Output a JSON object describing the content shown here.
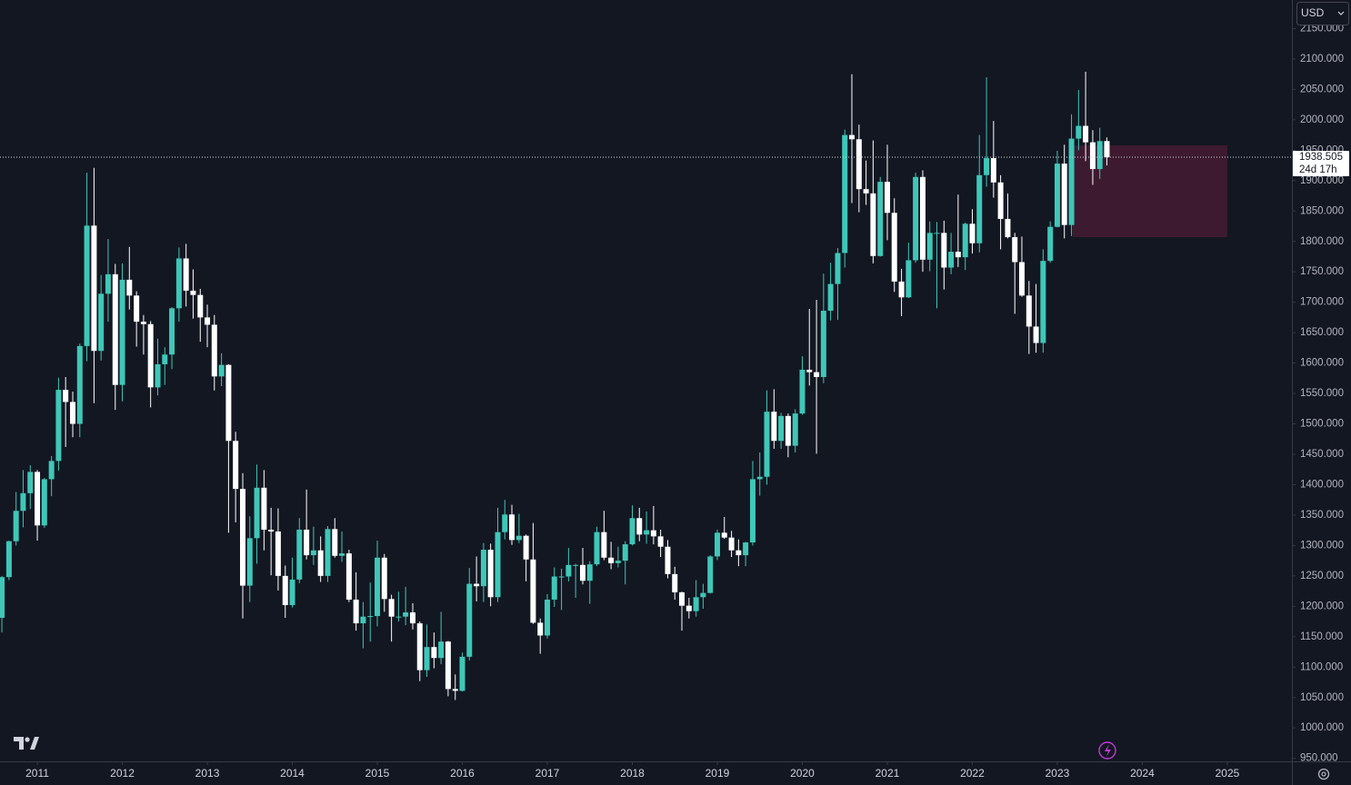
{
  "chart_data": {
    "type": "candlestick",
    "currency": "USD",
    "last_price": 1938.505,
    "countdown": "24d 17h",
    "up_color": "#3fc7b8",
    "down_color": "#ffffff",
    "grid": false,
    "xlim": [
      2010.561,
      2025.76
    ],
    "ylim": [
      945,
      2197
    ],
    "xticks": [
      2011,
      2012,
      2013,
      2014,
      2015,
      2016,
      2017,
      2018,
      2019,
      2020,
      2021,
      2022,
      2023,
      2024,
      2025
    ],
    "yticks": [
      {
        "value": 950,
        "label": "950.000"
      },
      {
        "value": 1000,
        "label": "1000.000"
      },
      {
        "value": 1050,
        "label": "1050.000"
      },
      {
        "value": 1100,
        "label": "1100.000"
      },
      {
        "value": 1150,
        "label": "1150.000"
      },
      {
        "value": 1200,
        "label": "1200.000"
      },
      {
        "value": 1250,
        "label": "1250.000"
      },
      {
        "value": 1300,
        "label": "1300.000"
      },
      {
        "value": 1350,
        "label": "1350.000"
      },
      {
        "value": 1400,
        "label": "1400.000"
      },
      {
        "value": 1450,
        "label": "1450.000"
      },
      {
        "value": 1500,
        "label": "1500.000"
      },
      {
        "value": 1550,
        "label": "1550.000"
      },
      {
        "value": 1600,
        "label": "1600.000"
      },
      {
        "value": 1650,
        "label": "1650.000"
      },
      {
        "value": 1700,
        "label": "1700.000"
      },
      {
        "value": 1750,
        "label": "1750.000"
      },
      {
        "value": 1800,
        "label": "1800.000"
      },
      {
        "value": 1850,
        "label": "1850.000"
      },
      {
        "value": 1900,
        "label": "1900.000"
      },
      {
        "value": 1950,
        "label": "1950.000"
      },
      {
        "value": 2000,
        "label": "2000.000"
      },
      {
        "value": 2050,
        "label": "2050.000"
      },
      {
        "value": 2100,
        "label": "2100.000"
      },
      {
        "value": 2150,
        "label": "2150.000"
      }
    ],
    "zone": {
      "x": [
        2023.18,
        2025.0
      ],
      "y": [
        1807,
        1958
      ],
      "color": "#3d1a30"
    },
    "x": [
      2010.583,
      2010.667,
      2010.75,
      2010.833,
      2010.917,
      2011,
      2011.083,
      2011.167,
      2011.25,
      2011.333,
      2011.417,
      2011.5,
      2011.583,
      2011.667,
      2011.75,
      2011.833,
      2011.917,
      2012,
      2012.083,
      2012.167,
      2012.25,
      2012.333,
      2012.417,
      2012.5,
      2012.583,
      2012.667,
      2012.75,
      2012.833,
      2012.917,
      2013,
      2013.083,
      2013.167,
      2013.25,
      2013.333,
      2013.417,
      2013.5,
      2013.583,
      2013.667,
      2013.75,
      2013.833,
      2013.917,
      2014,
      2014.083,
      2014.167,
      2014.25,
      2014.333,
      2014.417,
      2014.5,
      2014.583,
      2014.667,
      2014.75,
      2014.833,
      2014.917,
      2015,
      2015.083,
      2015.167,
      2015.25,
      2015.333,
      2015.417,
      2015.5,
      2015.583,
      2015.667,
      2015.75,
      2015.833,
      2015.917,
      2016,
      2016.083,
      2016.167,
      2016.25,
      2016.333,
      2016.417,
      2016.5,
      2016.583,
      2016.667,
      2016.75,
      2016.833,
      2016.917,
      2017,
      2017.083,
      2017.167,
      2017.25,
      2017.333,
      2017.417,
      2017.5,
      2017.583,
      2017.667,
      2017.75,
      2017.833,
      2017.917,
      2018,
      2018.083,
      2018.167,
      2018.25,
      2018.333,
      2018.417,
      2018.5,
      2018.583,
      2018.667,
      2018.75,
      2018.833,
      2018.917,
      2019,
      2019.083,
      2019.167,
      2019.25,
      2019.333,
      2019.417,
      2019.5,
      2019.583,
      2019.667,
      2019.75,
      2019.833,
      2019.917,
      2020,
      2020.083,
      2020.167,
      2020.25,
      2020.333,
      2020.417,
      2020.5,
      2020.583,
      2020.667,
      2020.75,
      2020.833,
      2020.917,
      2021,
      2021.083,
      2021.167,
      2021.25,
      2021.333,
      2021.417,
      2021.5,
      2021.583,
      2021.667,
      2021.75,
      2021.833,
      2021.917,
      2022,
      2022.083,
      2022.167,
      2022.25,
      2022.333,
      2022.417,
      2022.5,
      2022.583,
      2022.667,
      2022.75,
      2022.833,
      2022.917,
      2023,
      2023.083,
      2023.167,
      2023.25,
      2023.333,
      2023.417,
      2023.5,
      2023.583
    ],
    "open": [
      1181,
      1248,
      1307,
      1357,
      1386,
      1421,
      1333,
      1409,
      1439,
      1556,
      1536,
      1500,
      1628,
      1826,
      1620,
      1714,
      1746,
      1564,
      1737,
      1711,
      1668,
      1664,
      1560,
      1598,
      1614,
      1690,
      1772,
      1719,
      1712,
      1675,
      1663,
      1578,
      1597,
      1472,
      1393,
      1234,
      1312,
      1395,
      1326,
      1323,
      1250,
      1202,
      1244,
      1326,
      1284,
      1292,
      1250,
      1327,
      1283,
      1287,
      1211,
      1172,
      1183,
      1184,
      1280,
      1212,
      1183,
      1183,
      1190,
      1172,
      1095,
      1133,
      1115,
      1142,
      1064,
      1061,
      1117,
      1237,
      1233,
      1293,
      1215,
      1322,
      1351,
      1309,
      1316,
      1277,
      1173,
      1152,
      1211,
      1249,
      1249,
      1268,
      1268,
      1242,
      1269,
      1322,
      1280,
      1271,
      1275,
      1302,
      1345,
      1318,
      1325,
      1315,
      1298,
      1253,
      1223,
      1201,
      1192,
      1215,
      1222,
      1282,
      1321,
      1313,
      1292,
      1284,
      1305,
      1409,
      1413,
      1520,
      1472,
      1513,
      1464,
      1517,
      1589,
      1585,
      1577,
      1686,
      1730,
      1781,
      1975,
      1968,
      1886,
      1879,
      1776,
      1898,
      1847,
      1734,
      1708,
      1769,
      1906,
      1770,
      1814,
      1814,
      1757,
      1783,
      1774,
      1829,
      1797,
      1909,
      1937,
      1897,
      1837,
      1807,
      1766,
      1711,
      1660,
      1633,
      1768,
      1824,
      1928,
      1827,
      1969,
      1990,
      1963,
      1919,
      1965
    ],
    "high": [
      1250,
      1308,
      1388,
      1424,
      1432,
      1424,
      1411,
      1447,
      1576,
      1577,
      1553,
      1632,
      1913,
      1921,
      1745,
      1804,
      1763,
      1764,
      1791,
      1718,
      1679,
      1669,
      1640,
      1626,
      1692,
      1790,
      1796,
      1754,
      1722,
      1696,
      1679,
      1616,
      1598,
      1487,
      1419,
      1348,
      1433,
      1424,
      1362,
      1361,
      1267,
      1280,
      1345,
      1392,
      1331,
      1315,
      1332,
      1345,
      1323,
      1293,
      1256,
      1207,
      1239,
      1308,
      1286,
      1219,
      1224,
      1232,
      1205,
      1175,
      1170,
      1157,
      1191,
      1143,
      1088,
      1124,
      1263,
      1282,
      1304,
      1303,
      1362,
      1375,
      1367,
      1352,
      1318,
      1337,
      1180,
      1220,
      1264,
      1262,
      1296,
      1270,
      1296,
      1274,
      1331,
      1357,
      1306,
      1298,
      1307,
      1366,
      1362,
      1356,
      1365,
      1326,
      1309,
      1265,
      1224,
      1214,
      1243,
      1237,
      1284,
      1326,
      1347,
      1324,
      1310,
      1306,
      1439,
      1453,
      1555,
      1557,
      1518,
      1517,
      1524,
      1611,
      1689,
      1704,
      1747,
      1765,
      1789,
      1984,
      2075,
      1992,
      1933,
      1966,
      1906,
      1959,
      1871,
      1755,
      1798,
      1913,
      1917,
      1833,
      1832,
      1834,
      1814,
      1877,
      1831,
      1853,
      1975,
      2070,
      1998,
      1909,
      1879,
      1814,
      1808,
      1735,
      1730,
      1787,
      1833,
      1949,
      1959,
      2009,
      2049,
      2079,
      1983,
      1987,
      1971
    ],
    "low": [
      1157,
      1243,
      1300,
      1330,
      1360,
      1308,
      1329,
      1381,
      1423,
      1462,
      1478,
      1478,
      1603,
      1534,
      1604,
      1668,
      1523,
      1537,
      1688,
      1627,
      1614,
      1527,
      1547,
      1564,
      1590,
      1668,
      1693,
      1673,
      1635,
      1626,
      1555,
      1562,
      1321,
      1338,
      1180,
      1207,
      1270,
      1292,
      1251,
      1226,
      1181,
      1198,
      1238,
      1277,
      1268,
      1240,
      1240,
      1280,
      1273,
      1207,
      1160,
      1131,
      1142,
      1167,
      1191,
      1142,
      1175,
      1169,
      1162,
      1077,
      1084,
      1098,
      1105,
      1052,
      1046,
      1060,
      1111,
      1208,
      1207,
      1200,
      1207,
      1310,
      1301,
      1304,
      1241,
      1171,
      1122,
      1147,
      1199,
      1194,
      1241,
      1214,
      1236,
      1204,
      1266,
      1276,
      1261,
      1264,
      1236,
      1300,
      1307,
      1303,
      1302,
      1281,
      1246,
      1211,
      1160,
      1180,
      1183,
      1196,
      1221,
      1276,
      1311,
      1281,
      1266,
      1266,
      1300,
      1382,
      1400,
      1459,
      1459,
      1445,
      1453,
      1515,
      1563,
      1451,
      1567,
      1670,
      1671,
      1757,
      1863,
      1848,
      1860,
      1764,
      1775,
      1802,
      1717,
      1677,
      1707,
      1765,
      1750,
      1751,
      1690,
      1721,
      1746,
      1758,
      1753,
      1780,
      1782,
      1890,
      1872,
      1787,
      1805,
      1681,
      1709,
      1615,
      1617,
      1617,
      1765,
      1823,
      1805,
      1809,
      1950,
      1932,
      1893,
      1903,
      1925
    ],
    "close": [
      1248,
      1307,
      1357,
      1386,
      1421,
      1333,
      1409,
      1439,
      1556,
      1536,
      1500,
      1628,
      1826,
      1620,
      1714,
      1746,
      1564,
      1737,
      1711,
      1668,
      1664,
      1560,
      1598,
      1614,
      1690,
      1772,
      1719,
      1712,
      1675,
      1663,
      1578,
      1597,
      1472,
      1393,
      1234,
      1312,
      1395,
      1326,
      1323,
      1250,
      1202,
      1244,
      1326,
      1284,
      1292,
      1250,
      1327,
      1283,
      1287,
      1211,
      1172,
      1183,
      1184,
      1280,
      1212,
      1183,
      1183,
      1190,
      1172,
      1095,
      1133,
      1115,
      1142,
      1064,
      1061,
      1117,
      1237,
      1233,
      1293,
      1215,
      1322,
      1351,
      1309,
      1316,
      1277,
      1173,
      1152,
      1211,
      1249,
      1249,
      1268,
      1268,
      1242,
      1269,
      1322,
      1280,
      1271,
      1275,
      1302,
      1345,
      1318,
      1325,
      1315,
      1298,
      1253,
      1223,
      1201,
      1192,
      1215,
      1222,
      1282,
      1321,
      1313,
      1292,
      1284,
      1305,
      1409,
      1413,
      1520,
      1472,
      1513,
      1464,
      1517,
      1589,
      1585,
      1577,
      1686,
      1730,
      1781,
      1975,
      1968,
      1886,
      1879,
      1776,
      1898,
      1847,
      1734,
      1708,
      1769,
      1906,
      1770,
      1814,
      1814,
      1757,
      1783,
      1774,
      1829,
      1797,
      1909,
      1937,
      1897,
      1837,
      1807,
      1766,
      1711,
      1660,
      1633,
      1768,
      1824,
      1928,
      1827,
      1969,
      1990,
      1963,
      1919,
      1965,
      1938.505
    ]
  }
}
